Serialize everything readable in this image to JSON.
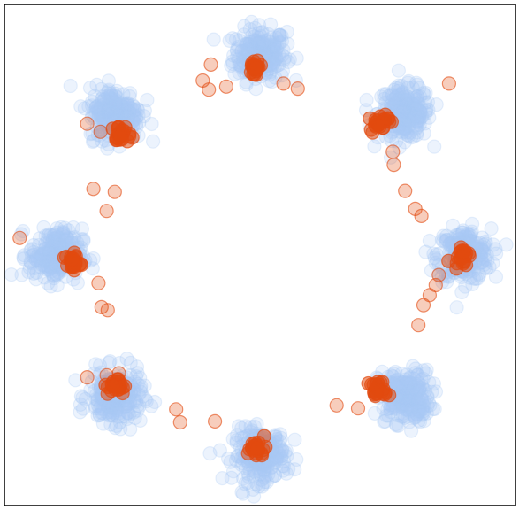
{
  "chart_data": {
    "type": "scatter",
    "title": "",
    "xlabel": "",
    "ylabel": "",
    "xlim": [
      -2.5,
      2.5
    ],
    "ylim": [
      -2.5,
      2.5
    ],
    "grid": false,
    "legend": "none",
    "axes_ticks": false,
    "colors": {
      "target": "#a9c8f5",
      "generated": "#e24a0f",
      "frame": "#000000"
    },
    "target_modes": [
      {
        "x": 0.0,
        "y": 2.0
      },
      {
        "x": 1.414,
        "y": 1.414
      },
      {
        "x": 2.0,
        "y": 0.0
      },
      {
        "x": 1.414,
        "y": -1.414
      },
      {
        "x": 0.0,
        "y": -2.0
      },
      {
        "x": -1.414,
        "y": -1.414
      },
      {
        "x": -2.0,
        "y": 0.0
      },
      {
        "x": -1.414,
        "y": 1.414
      }
    ],
    "generated_clusters": [
      {
        "x": -0.05,
        "y": 1.87
      },
      {
        "x": 1.17,
        "y": 1.33
      },
      {
        "x": 1.97,
        "y": 0.0
      },
      {
        "x": 1.17,
        "y": -1.35
      },
      {
        "x": -0.03,
        "y": -1.93
      },
      {
        "x": -1.4,
        "y": -1.31
      },
      {
        "x": -1.84,
        "y": -0.07
      },
      {
        "x": -1.36,
        "y": 1.2
      }
    ],
    "generated_outliers": [
      {
        "x": -0.48,
        "y": 1.9
      },
      {
        "x": -0.56,
        "y": 1.74
      },
      {
        "x": -0.5,
        "y": 1.65
      },
      {
        "x": -0.33,
        "y": 1.68
      },
      {
        "x": 0.23,
        "y": 1.71
      },
      {
        "x": 0.37,
        "y": 1.66
      },
      {
        "x": 1.85,
        "y": 1.71
      },
      {
        "x": 1.3,
        "y": 1.03
      },
      {
        "x": 1.31,
        "y": 0.9
      },
      {
        "x": 1.42,
        "y": 0.64
      },
      {
        "x": 1.52,
        "y": 0.46
      },
      {
        "x": 1.58,
        "y": 0.39
      },
      {
        "x": 1.75,
        "y": -0.2
      },
      {
        "x": 1.72,
        "y": -0.3
      },
      {
        "x": 1.66,
        "y": -0.4
      },
      {
        "x": 1.6,
        "y": -0.5
      },
      {
        "x": 1.55,
        "y": -0.7
      },
      {
        "x": 0.75,
        "y": -1.5
      },
      {
        "x": 0.96,
        "y": -1.53
      },
      {
        "x": -0.44,
        "y": -1.66
      },
      {
        "x": -0.82,
        "y": -1.54
      },
      {
        "x": -0.78,
        "y": -1.67
      },
      {
        "x": -1.69,
        "y": 1.31
      },
      {
        "x": -1.56,
        "y": 1.23
      },
      {
        "x": -1.42,
        "y": 0.63
      },
      {
        "x": -1.63,
        "y": 0.66
      },
      {
        "x": -1.5,
        "y": 0.44
      },
      {
        "x": -2.35,
        "y": 0.17
      },
      {
        "x": -1.58,
        "y": -0.28
      },
      {
        "x": -1.55,
        "y": -0.52
      },
      {
        "x": -1.49,
        "y": -0.55
      },
      {
        "x": -1.69,
        "y": -1.22
      },
      {
        "x": -1.5,
        "y": -1.2
      },
      {
        "x": -1.38,
        "y": -1.18
      }
    ]
  }
}
